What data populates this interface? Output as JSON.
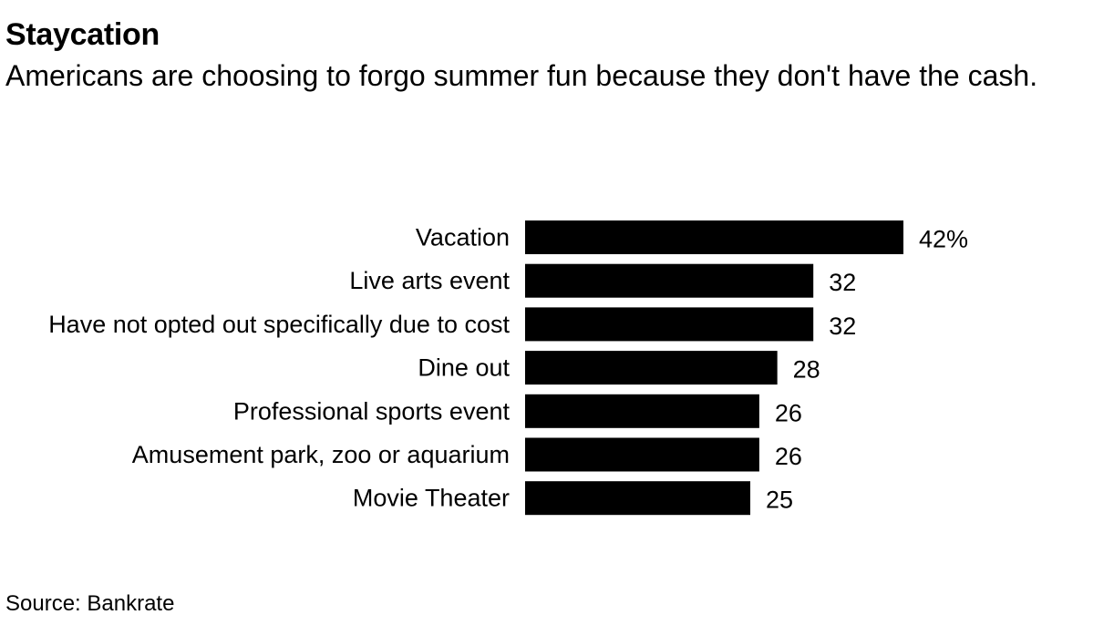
{
  "title": "Staycation",
  "subtitle": "Americans are choosing to forgo summer fun because they don't have the cash.",
  "source": "Source: Bankrate",
  "chart_data": {
    "type": "bar",
    "orientation": "horizontal",
    "categories": [
      "Vacation",
      "Live arts event",
      "Have not opted out specifically due to cost",
      "Dine out",
      "Professional sports event",
      "Amusement park, zoo or aquarium",
      "Movie Theater"
    ],
    "values": [
      42,
      32,
      32,
      28,
      26,
      26,
      25
    ],
    "value_labels": [
      "42%",
      "32",
      "32",
      "28",
      "26",
      "26",
      "25"
    ],
    "xlim": [
      0,
      42
    ],
    "bar_color": "#000000",
    "grid": false,
    "legend": "none"
  }
}
